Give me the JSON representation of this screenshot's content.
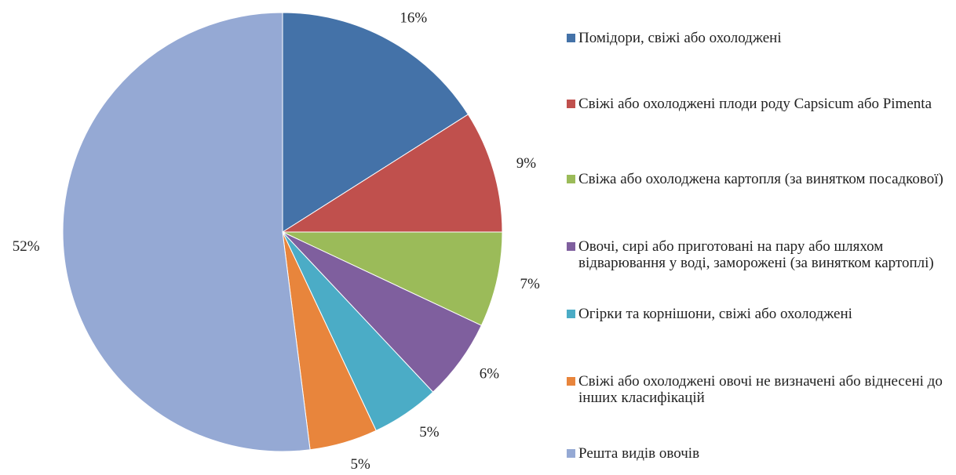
{
  "chart_data": {
    "type": "pie",
    "categories": [
      "Помідори, свіжі або охолоджені",
      "Свіжі або охолоджені плоди роду Capsicum або Pimenta",
      "Свіжа або охолоджена картопля (за винятком посадкової)",
      "Овочі, сирі або приготовані на пару або шляхом відварювання у воді, заморожені (за винятком картоплі)",
      "Огірки та корнішони, свіжі або охолоджені",
      "Свіжі або охолоджені овочі не визначені або віднесені до інших класифікацій",
      "Решта видів овочів"
    ],
    "values": [
      16,
      9,
      7,
      6,
      5,
      5,
      52
    ],
    "value_labels": [
      "16%",
      "9%",
      "7%",
      "6%",
      "5%",
      "5%",
      "52%"
    ],
    "colors": [
      "#4472a8",
      "#c0504d",
      "#9bbb59",
      "#7f5f9e",
      "#4bacc6",
      "#e8853c",
      "#95a9d4"
    ],
    "legend": "right"
  }
}
